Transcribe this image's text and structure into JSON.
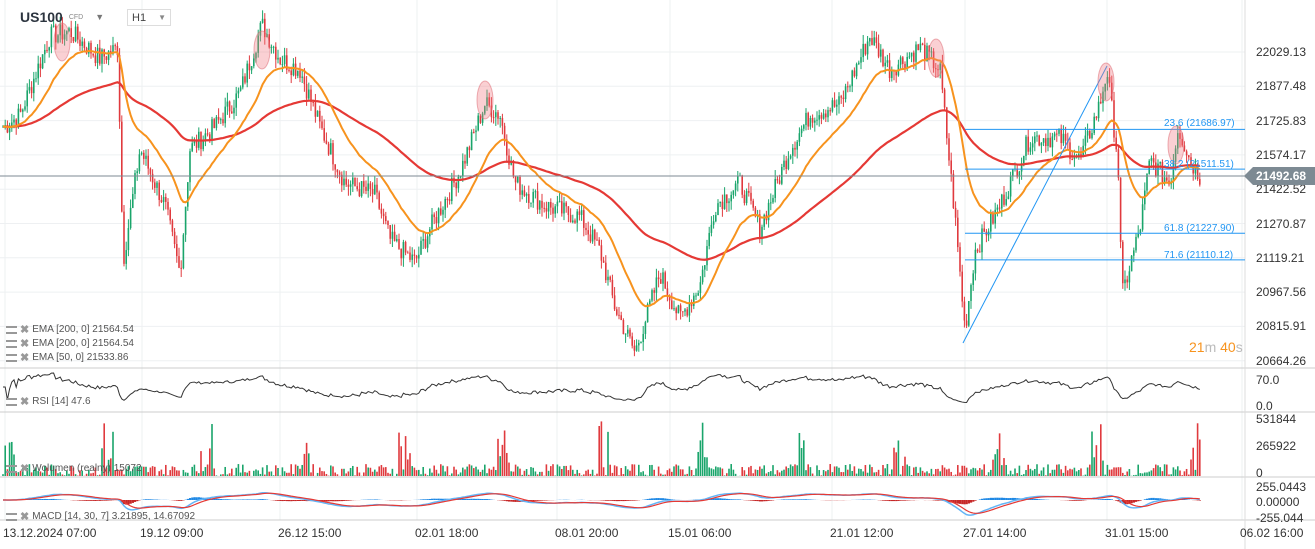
{
  "header": {
    "symbol": "US100",
    "instrument_type": "CFD",
    "timeframe": "H1"
  },
  "price_axis": [
    "22029.13",
    "21877.48",
    "21725.83",
    "21574.17",
    "21422.52",
    "21270.87",
    "21119.21",
    "20967.56",
    "20815.91",
    "20664.26"
  ],
  "current_price": "21492.68",
  "timer": {
    "minutes": "21",
    "m": "m",
    "seconds": "40",
    "s": "s"
  },
  "fibonacci": [
    {
      "label": "23.6 (21686.97)",
      "price": 21686.97
    },
    {
      "label": "38.2 (21511.51)",
      "price": 21511.51
    },
    {
      "label": "61.8 (21227.90)",
      "price": 21227.9
    },
    {
      "label": "71.6 (21110.12)",
      "price": 21110.12
    }
  ],
  "indicators": {
    "ema1": "EMA [200, 0] 21564.54",
    "ema2": "EMA [200, 0] 21564.54",
    "ema3": "EMA [50, 0] 21533.86",
    "rsi": "RSI [14] 47.6",
    "volume": "Wolumen (realny) 15072",
    "macd": "MACD [14, 30, 7] 3.21895, 14.67092"
  },
  "rsi_axis": [
    "70.0",
    "0.0"
  ],
  "volume_axis": [
    "531844",
    "265922",
    "0"
  ],
  "macd_axis": [
    "255.0443",
    "0.00000",
    "-255.044"
  ],
  "time_axis": [
    "13.12.2024 07:00",
    "19.12 09:00",
    "26.12 15:00",
    "02.01 18:00",
    "08.01 20:00",
    "15.01 06:00",
    "21.01 12:00",
    "27.01 14:00",
    "31.01 15:00",
    "06.02 16:00"
  ],
  "colors": {
    "up": "#1aa56b",
    "down": "#e03a3e",
    "ema200": "#e53935",
    "ema50": "#f7931e",
    "fib": "#2196f3",
    "grid": "#eef0f2"
  },
  "price_path": [
    [
      5,
      21700
    ],
    [
      20,
      21750
    ],
    [
      50,
      22100
    ],
    [
      70,
      22120
    ],
    [
      100,
      22000
    ],
    [
      118,
      22050
    ],
    [
      123,
      21100
    ],
    [
      140,
      21600
    ],
    [
      165,
      21350
    ],
    [
      180,
      21050
    ],
    [
      190,
      21600
    ],
    [
      215,
      21700
    ],
    [
      240,
      21850
    ],
    [
      262,
      22150
    ],
    [
      280,
      22000
    ],
    [
      300,
      21950
    ],
    [
      320,
      21700
    ],
    [
      345,
      21450
    ],
    [
      375,
      21400
    ],
    [
      390,
      21200
    ],
    [
      415,
      21100
    ],
    [
      430,
      21250
    ],
    [
      460,
      21500
    ],
    [
      485,
      21800
    ],
    [
      500,
      21750
    ],
    [
      515,
      21450
    ],
    [
      545,
      21350
    ],
    [
      580,
      21300
    ],
    [
      600,
      21150
    ],
    [
      615,
      20900
    ],
    [
      635,
      20700
    ],
    [
      660,
      21050
    ],
    [
      680,
      20850
    ],
    [
      700,
      21000
    ],
    [
      715,
      21350
    ],
    [
      740,
      21450
    ],
    [
      760,
      21250
    ],
    [
      790,
      21600
    ],
    [
      810,
      21750
    ],
    [
      840,
      21800
    ],
    [
      870,
      22100
    ],
    [
      890,
      21950
    ],
    [
      920,
      22050
    ],
    [
      940,
      21950
    ],
    [
      955,
      21300
    ],
    [
      965,
      20800
    ],
    [
      975,
      21150
    ],
    [
      1000,
      21350
    ],
    [
      1030,
      21650
    ],
    [
      1060,
      21650
    ],
    [
      1080,
      21550
    ],
    [
      1100,
      21800
    ],
    [
      1107,
      21950
    ],
    [
      1118,
      21550
    ],
    [
      1122,
      20950
    ],
    [
      1140,
      21250
    ],
    [
      1150,
      21550
    ],
    [
      1170,
      21450
    ],
    [
      1178,
      21700
    ],
    [
      1190,
      21550
    ],
    [
      1200,
      21480
    ]
  ]
}
